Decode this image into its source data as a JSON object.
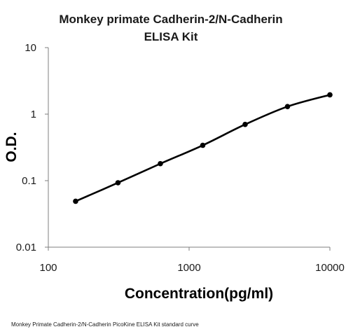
{
  "chart_data": {
    "type": "scatter",
    "title_lines": [
      "Monkey primate Cadherin-2/N-Cadherin",
      "ELISA Kit"
    ],
    "xlabel": "Concentration(pg/ml)",
    "ylabel": "O.D.",
    "x_scale": "log",
    "y_scale": "log",
    "xlim": [
      100,
      10000
    ],
    "ylim": [
      0.01,
      10
    ],
    "x_ticks": [
      "100",
      "1000",
      "10000"
    ],
    "y_ticks": [
      "10",
      "1",
      "0.1",
      "0.01"
    ],
    "grid": false,
    "legend": "none",
    "series": [
      {
        "points": [
          {
            "x": 156.25,
            "y": 0.049
          },
          {
            "x": 312.5,
            "y": 0.093
          },
          {
            "x": 625,
            "y": 0.18
          },
          {
            "x": 1250,
            "y": 0.34
          },
          {
            "x": 2500,
            "y": 0.7
          },
          {
            "x": 5000,
            "y": 1.3
          },
          {
            "x": 10000,
            "y": 1.95
          }
        ],
        "trendline": true
      }
    ],
    "caption": "Monkey Primate Cadherin-2/N-Cadherin PicoKine ELISA Kit standard curve",
    "colors": {
      "marker": "#000000",
      "line": "#000000",
      "axis": "#7f7f7f"
    }
  }
}
